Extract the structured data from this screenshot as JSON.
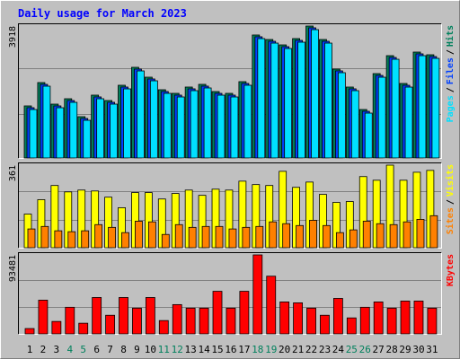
{
  "legend_separator": "/",
  "chart_data": [
    {
      "type": "bar",
      "title": "Daily usage for March 2023",
      "ylim": [
        0,
        3918
      ],
      "yticks": [
        3918
      ],
      "series": [
        {
          "name": "Hits",
          "color": "#00805c",
          "values": [
            1546,
            2239,
            1599,
            1759,
            1226,
            1866,
            1706,
            2159,
            2692,
            2399,
            2026,
            1919,
            2106,
            2186,
            1972,
            1919,
            2266,
            3652,
            3518,
            3358,
            3545,
            3918,
            3518,
            2639,
            2106,
            1439,
            2505,
            3038,
            2212,
            3145,
            3065
          ]
        },
        {
          "name": "Files",
          "color": "#0040ff",
          "values": [
            1493,
            2186,
            1546,
            1706,
            1173,
            1813,
            1653,
            2106,
            2639,
            2346,
            1973,
            1866,
            2053,
            2133,
            1919,
            1866,
            2213,
            3599,
            3465,
            3305,
            3492,
            3865,
            3465,
            2586,
            2053,
            1386,
            2452,
            2985,
            2159,
            3092,
            3012
          ]
        },
        {
          "name": "Pages",
          "color": "#00e0ff",
          "values": [
            1439,
            2132,
            1492,
            1652,
            1119,
            1759,
            1599,
            2052,
            2585,
            2292,
            1919,
            1812,
            1999,
            2079,
            1865,
            1812,
            2159,
            3545,
            3411,
            3251,
            3438,
            3811,
            3411,
            2532,
            1999,
            1332,
            2398,
            2931,
            2105,
            3038,
            2958
          ]
        }
      ]
    },
    {
      "type": "bar",
      "ylim": [
        0,
        361
      ],
      "yticks": [
        361
      ],
      "series": [
        {
          "name": "Visits",
          "color": "#ffff00",
          "values": [
            147,
            210,
            272,
            244,
            252,
            248,
            221,
            175,
            241,
            241,
            213,
            237,
            252,
            229,
            256,
            252,
            291,
            276,
            272,
            334,
            264,
            287,
            233,
            198,
            202,
            311,
            295,
            361,
            295,
            330,
            338
          ]
        },
        {
          "name": "Sites",
          "color": "#ff8000",
          "values": [
            82,
            93,
            74,
            70,
            74,
            101,
            89,
            66,
            116,
            113,
            58,
            101,
            89,
            93,
            93,
            82,
            89,
            93,
            113,
            105,
            97,
            120,
            97,
            66,
            78,
            116,
            105,
            101,
            113,
            124,
            140
          ]
        }
      ]
    },
    {
      "type": "bar",
      "ylim": [
        0,
        93481
      ],
      "yticks": [
        93481
      ],
      "categories": [
        "1",
        "2",
        "3",
        "4",
        "5",
        "6",
        "7",
        "8",
        "9",
        "10",
        "11",
        "12",
        "13",
        "14",
        "15",
        "16",
        "17",
        "18",
        "19",
        "20",
        "21",
        "22",
        "23",
        "24",
        "25",
        "26",
        "27",
        "28",
        "29",
        "30",
        "31"
      ],
      "category_colors": [
        "#000000",
        "#000000",
        "#000000",
        "#00805c",
        "#00805c",
        "#000000",
        "#000000",
        "#000000",
        "#000000",
        "#000000",
        "#00805c",
        "#00805c",
        "#000000",
        "#000000",
        "#000000",
        "#000000",
        "#000000",
        "#00805c",
        "#00805c",
        "#000000",
        "#000000",
        "#000000",
        "#000000",
        "#000000",
        "#00805c",
        "#00805c",
        "#000000",
        "#000000",
        "#000000",
        "#000000",
        "#000000"
      ],
      "series": [
        {
          "name": "KBytes",
          "color": "#ff0000",
          "values": [
            6302,
            39913,
            14705,
            31510,
            12604,
            43064,
            22057,
            43064,
            30460,
            43064,
            15755,
            34661,
            30460,
            30460,
            50416,
            30460,
            50416,
            93481,
            68272,
            37812,
            36762,
            30460,
            22057,
            42014,
            18906,
            31510,
            37812,
            30460,
            38863,
            38863,
            30460
          ]
        }
      ]
    }
  ]
}
